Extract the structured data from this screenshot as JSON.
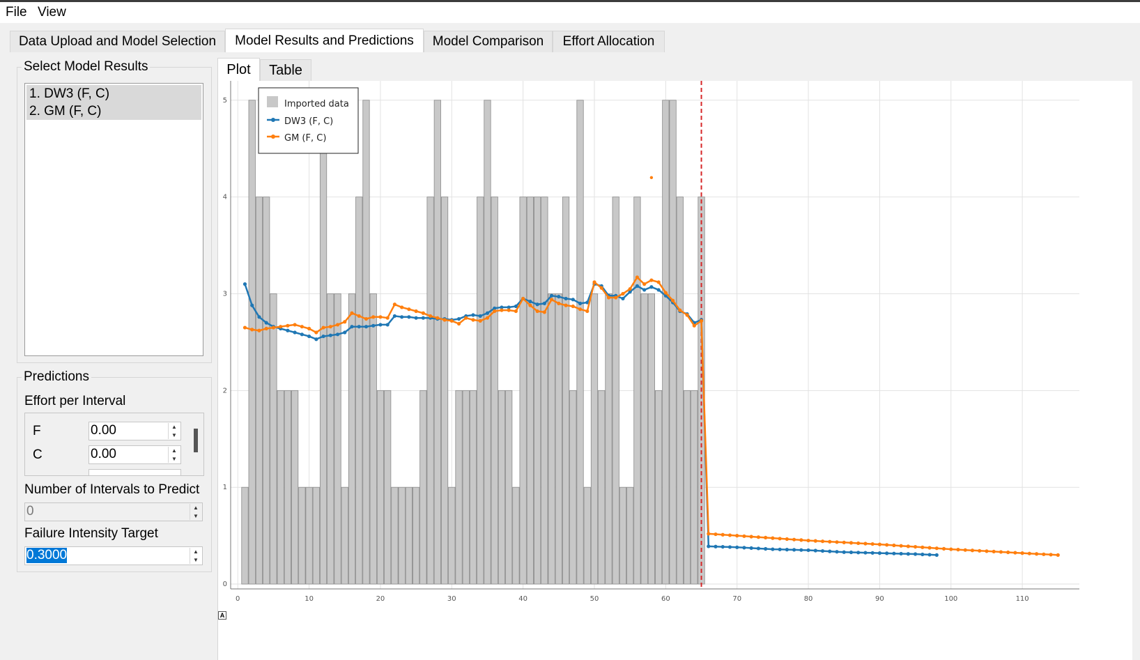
{
  "menu": {
    "file": "File",
    "view": "View"
  },
  "tabs": [
    "Data Upload and Model Selection",
    "Model Results and Predictions",
    "Model Comparison",
    "Effort Allocation"
  ],
  "left": {
    "select_title": "Select Model Results",
    "models": [
      "1. DW3 (F, C)",
      "2. GM (F, C)"
    ],
    "predictions_title": "Predictions",
    "effort_label": "Effort per Interval",
    "effort_rows": [
      {
        "name": "F",
        "value": "0.00"
      },
      {
        "name": "C",
        "value": "0.00"
      }
    ],
    "intervals_label": "Number of Intervals to Predict",
    "intervals_value": "0",
    "target_label": "Failure Intensity Target",
    "target_value": "0.3000"
  },
  "subtabs": [
    "Plot",
    "Table"
  ],
  "colors": {
    "bar": "#c8c8c8",
    "dw3": "#1f77b4",
    "gm": "#ff7f0e",
    "vline": "#d62728"
  },
  "chart_data": {
    "type": "bar",
    "legend": [
      "Imported data",
      "DW3 (F, C)",
      "GM (F, C)"
    ],
    "xlim": [
      -1,
      118
    ],
    "ylim": [
      -0.05,
      5.2
    ],
    "x_ticks": [
      0,
      10,
      20,
      30,
      40,
      50,
      60,
      70,
      80,
      90,
      100,
      110
    ],
    "y_ticks": [
      0,
      1,
      2,
      3,
      4,
      5
    ],
    "vline_x": 65,
    "series": [
      {
        "name": "Imported data",
        "x": [
          1,
          2,
          3,
          4,
          5,
          6,
          7,
          8,
          9,
          10,
          11,
          12,
          13,
          14,
          15,
          16,
          17,
          18,
          19,
          20,
          21,
          22,
          23,
          24,
          25,
          26,
          27,
          28,
          29,
          30,
          31,
          32,
          33,
          34,
          35,
          36,
          37,
          38,
          39,
          40,
          41,
          42,
          43,
          44,
          45,
          46,
          47,
          48,
          49,
          50,
          51,
          52,
          53,
          54,
          55,
          56,
          57,
          58,
          59,
          60,
          61,
          62,
          63,
          64,
          65
        ],
        "values": [
          1,
          5,
          4,
          4,
          3,
          2,
          2,
          2,
          1,
          1,
          1,
          5,
          3,
          3,
          1,
          3,
          4,
          5,
          3,
          2,
          2,
          1,
          1,
          1,
          1,
          2,
          4,
          5,
          4,
          1,
          2,
          2,
          2,
          4,
          5,
          4,
          2,
          2,
          1,
          4,
          4,
          4,
          4,
          3,
          3,
          4,
          2,
          5,
          1,
          3,
          2,
          3,
          4,
          1,
          1,
          4,
          3,
          3,
          2,
          5,
          5,
          4,
          2,
          2,
          4
        ],
        "sep_x": [
          1,
          2,
          3,
          4,
          5,
          6,
          7,
          8,
          9,
          10,
          11,
          12,
          13,
          14,
          15,
          16,
          17,
          18,
          19,
          20,
          21,
          22,
          23,
          24,
          25,
          26,
          27,
          28,
          29,
          30,
          31,
          32,
          33,
          34,
          35,
          36,
          37,
          38,
          39,
          40,
          41,
          42,
          43,
          44,
          45,
          46,
          47,
          48,
          49,
          50,
          51,
          52,
          53,
          54,
          55,
          56,
          57,
          58,
          59,
          60,
          61,
          62,
          63,
          64
        ]
      },
      {
        "name": "DW3 (F, C)",
        "x": [
          1,
          2,
          3,
          4,
          5,
          6,
          7,
          8,
          9,
          10,
          11,
          12,
          13,
          14,
          15,
          16,
          17,
          18,
          19,
          20,
          21,
          22,
          23,
          24,
          25,
          26,
          27,
          28,
          29,
          30,
          31,
          32,
          33,
          34,
          35,
          36,
          37,
          38,
          39,
          40,
          41,
          42,
          43,
          44,
          45,
          46,
          47,
          48,
          49,
          50,
          51,
          52,
          53,
          54,
          55,
          56,
          57,
          58,
          59,
          60,
          61,
          62,
          63,
          64,
          65,
          66,
          70,
          75,
          80,
          85,
          90,
          95,
          98
        ],
        "values": [
          3.1,
          2.88,
          2.76,
          2.7,
          2.66,
          2.64,
          2.62,
          2.6,
          2.58,
          2.56,
          2.53,
          2.56,
          2.57,
          2.58,
          2.6,
          2.66,
          2.66,
          2.66,
          2.67,
          2.68,
          2.68,
          2.77,
          2.76,
          2.76,
          2.75,
          2.75,
          2.75,
          2.74,
          2.74,
          2.73,
          2.74,
          2.77,
          2.78,
          2.77,
          2.8,
          2.85,
          2.86,
          2.86,
          2.87,
          2.95,
          2.92,
          2.89,
          2.9,
          2.98,
          2.97,
          2.95,
          2.94,
          2.9,
          2.91,
          3.1,
          3.08,
          2.98,
          2.98,
          2.95,
          3.02,
          3.08,
          3.04,
          3.07,
          3.04,
          2.98,
          2.91,
          2.82,
          2.79,
          2.7,
          2.73,
          0.39,
          0.38,
          0.36,
          0.35,
          0.33,
          0.32,
          0.31,
          0.3
        ]
      },
      {
        "name": "GM (F, C)",
        "x": [
          1,
          2,
          3,
          4,
          5,
          6,
          7,
          8,
          9,
          10,
          11,
          12,
          13,
          14,
          15,
          16,
          17,
          18,
          19,
          20,
          21,
          22,
          23,
          24,
          25,
          26,
          27,
          28,
          29,
          30,
          31,
          32,
          33,
          34,
          35,
          36,
          37,
          38,
          39,
          40,
          41,
          42,
          43,
          44,
          45,
          46,
          47,
          48,
          49,
          50,
          51,
          52,
          53,
          54,
          55,
          56,
          57,
          58,
          59,
          60,
          61,
          62,
          63,
          64,
          65,
          66,
          70,
          80,
          90,
          100,
          110,
          115
        ],
        "values": [
          2.65,
          2.63,
          2.62,
          2.64,
          2.65,
          2.66,
          2.67,
          2.68,
          2.66,
          2.64,
          2.6,
          2.65,
          2.66,
          2.68,
          2.71,
          2.8,
          2.77,
          2.74,
          2.76,
          2.76,
          2.75,
          2.89,
          2.86,
          2.84,
          2.82,
          2.8,
          2.77,
          2.75,
          2.73,
          2.72,
          2.69,
          2.75,
          2.73,
          2.72,
          2.75,
          2.82,
          2.83,
          2.83,
          2.82,
          2.95,
          2.88,
          2.82,
          2.81,
          2.94,
          2.9,
          2.88,
          2.87,
          2.84,
          2.82,
          3.12,
          3.06,
          2.96,
          2.96,
          3.0,
          3.05,
          3.17,
          3.1,
          3.14,
          3.12,
          3.01,
          2.93,
          2.83,
          2.78,
          2.67,
          2.72,
          0.52,
          0.5,
          0.45,
          0.41,
          0.36,
          0.32,
          0.3
        ],
        "outlier": {
          "x": 58,
          "y": 4.2
        }
      }
    ]
  }
}
